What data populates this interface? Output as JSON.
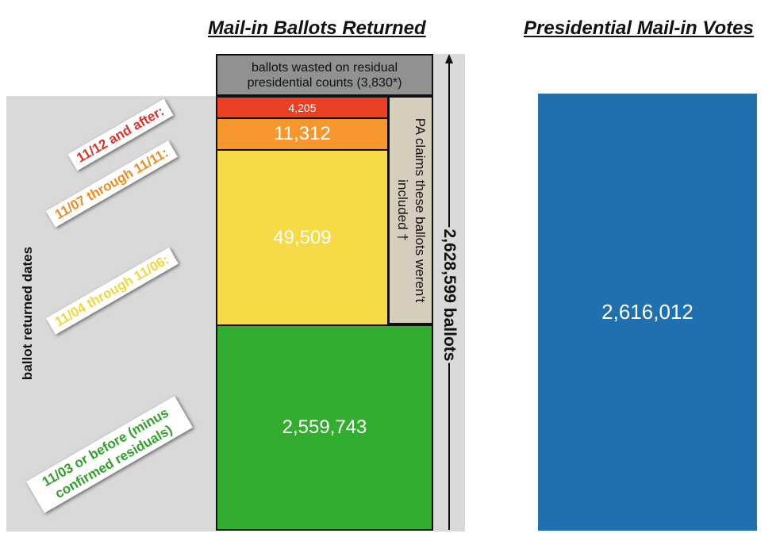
{
  "chart_data": [
    {
      "type": "bar",
      "title": "Mail-in Ballots Returned",
      "stacked": true,
      "segments": [
        {
          "label": "11/03 or before (minus confirmed  residuals)",
          "value": 2559743,
          "display": "2,559,743",
          "color": "#33ad2f",
          "label_color": "#33a02c"
        },
        {
          "label": "11/04 through 11/06:",
          "value": 49509,
          "display": "49,509",
          "color": "#f6da47",
          "label_color": "#f2d640"
        },
        {
          "label": "11/07 through 11/11:",
          "value": 11312,
          "display": "11,312",
          "color": "#f7962d",
          "label_color": "#f08a20"
        },
        {
          "label": "11/12 and after:",
          "value": 4205,
          "display": "4,205",
          "color": "#ec4024",
          "label_color": "#d83428"
        },
        {
          "label": "ballots wasted on residual presidential counts (3,830*)",
          "value": 3830,
          "color": "#919191"
        }
      ],
      "annotation": "PA claims these ballots weren't included †",
      "total_label": "2,628,599 ballots",
      "axis_label": "ballot returned dates"
    },
    {
      "type": "bar",
      "title": "Presidential Mail-in Votes",
      "value": 2616012,
      "display": "2,616,012",
      "color": "#2070b0"
    }
  ]
}
